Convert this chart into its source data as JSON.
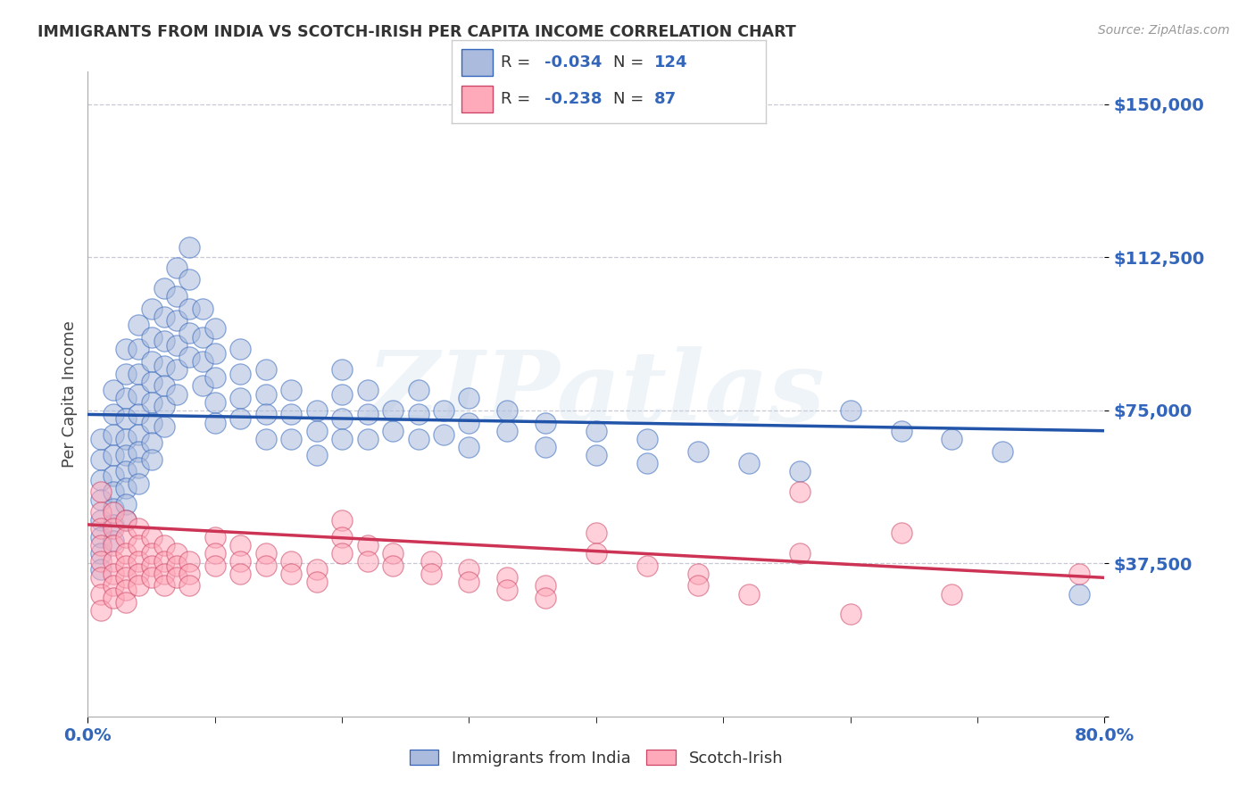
{
  "title": "IMMIGRANTS FROM INDIA VS SCOTCH-IRISH PER CAPITA INCOME CORRELATION CHART",
  "source": "Source: ZipAtlas.com",
  "ylabel": "Per Capita Income",
  "yticks": [
    0,
    37500,
    75000,
    112500,
    150000
  ],
  "ytick_labels": [
    "",
    "$37,500",
    "$75,000",
    "$112,500",
    "$150,000"
  ],
  "xmin": 0.0,
  "xmax": 0.8,
  "ymin": 0,
  "ymax": 158000,
  "watermark": "ZIPatlas",
  "blue_R": -0.034,
  "blue_N": 124,
  "pink_R": -0.238,
  "pink_N": 87,
  "blue_fill": "#AABBDD",
  "blue_edge": "#3366BB",
  "pink_fill": "#FFAABB",
  "pink_edge": "#CC4466",
  "blue_line": "#2255AA",
  "pink_line": "#CC3355",
  "legend_blue_label": "Immigrants from India",
  "legend_pink_label": "Scotch-Irish",
  "blue_scatter_x": [
    0.01,
    0.01,
    0.01,
    0.01,
    0.01,
    0.01,
    0.01,
    0.01,
    0.02,
    0.02,
    0.02,
    0.02,
    0.02,
    0.02,
    0.02,
    0.02,
    0.02,
    0.03,
    0.03,
    0.03,
    0.03,
    0.03,
    0.03,
    0.03,
    0.03,
    0.03,
    0.03,
    0.04,
    0.04,
    0.04,
    0.04,
    0.04,
    0.04,
    0.04,
    0.04,
    0.04,
    0.05,
    0.05,
    0.05,
    0.05,
    0.05,
    0.05,
    0.05,
    0.05,
    0.06,
    0.06,
    0.06,
    0.06,
    0.06,
    0.06,
    0.06,
    0.07,
    0.07,
    0.07,
    0.07,
    0.07,
    0.07,
    0.08,
    0.08,
    0.08,
    0.08,
    0.08,
    0.09,
    0.09,
    0.09,
    0.09,
    0.1,
    0.1,
    0.1,
    0.1,
    0.1,
    0.12,
    0.12,
    0.12,
    0.12,
    0.14,
    0.14,
    0.14,
    0.14,
    0.16,
    0.16,
    0.16,
    0.18,
    0.18,
    0.18,
    0.2,
    0.2,
    0.2,
    0.2,
    0.22,
    0.22,
    0.22,
    0.24,
    0.24,
    0.26,
    0.26,
    0.26,
    0.28,
    0.28,
    0.3,
    0.3,
    0.3,
    0.33,
    0.33,
    0.36,
    0.36,
    0.4,
    0.4,
    0.44,
    0.44,
    0.48,
    0.52,
    0.56,
    0.6,
    0.64,
    0.68,
    0.72,
    0.78
  ],
  "blue_scatter_y": [
    68000,
    63000,
    58000,
    53000,
    48000,
    44000,
    40000,
    36000,
    80000,
    74000,
    69000,
    64000,
    59000,
    55000,
    51000,
    47000,
    43000,
    90000,
    84000,
    78000,
    73000,
    68000,
    64000,
    60000,
    56000,
    52000,
    48000,
    96000,
    90000,
    84000,
    79000,
    74000,
    69000,
    65000,
    61000,
    57000,
    100000,
    93000,
    87000,
    82000,
    77000,
    72000,
    67000,
    63000,
    105000,
    98000,
    92000,
    86000,
    81000,
    76000,
    71000,
    110000,
    103000,
    97000,
    91000,
    85000,
    79000,
    115000,
    107000,
    100000,
    94000,
    88000,
    100000,
    93000,
    87000,
    81000,
    95000,
    89000,
    83000,
    77000,
    72000,
    90000,
    84000,
    78000,
    73000,
    85000,
    79000,
    74000,
    68000,
    80000,
    74000,
    68000,
    75000,
    70000,
    64000,
    85000,
    79000,
    73000,
    68000,
    80000,
    74000,
    68000,
    75000,
    70000,
    80000,
    74000,
    68000,
    75000,
    69000,
    78000,
    72000,
    66000,
    75000,
    70000,
    72000,
    66000,
    70000,
    64000,
    68000,
    62000,
    65000,
    62000,
    60000,
    75000,
    70000,
    68000,
    65000,
    30000
  ],
  "pink_scatter_x": [
    0.01,
    0.01,
    0.01,
    0.01,
    0.01,
    0.01,
    0.01,
    0.01,
    0.02,
    0.02,
    0.02,
    0.02,
    0.02,
    0.02,
    0.02,
    0.03,
    0.03,
    0.03,
    0.03,
    0.03,
    0.03,
    0.03,
    0.04,
    0.04,
    0.04,
    0.04,
    0.04,
    0.05,
    0.05,
    0.05,
    0.05,
    0.06,
    0.06,
    0.06,
    0.06,
    0.07,
    0.07,
    0.07,
    0.08,
    0.08,
    0.08,
    0.1,
    0.1,
    0.1,
    0.12,
    0.12,
    0.12,
    0.14,
    0.14,
    0.16,
    0.16,
    0.18,
    0.18,
    0.2,
    0.2,
    0.2,
    0.22,
    0.22,
    0.24,
    0.24,
    0.27,
    0.27,
    0.3,
    0.3,
    0.33,
    0.33,
    0.36,
    0.36,
    0.4,
    0.4,
    0.44,
    0.48,
    0.48,
    0.52,
    0.56,
    0.56,
    0.6,
    0.64,
    0.68,
    0.78
  ],
  "pink_scatter_y": [
    55000,
    50000,
    46000,
    42000,
    38000,
    34000,
    30000,
    26000,
    50000,
    46000,
    42000,
    38000,
    35000,
    32000,
    29000,
    48000,
    44000,
    40000,
    37000,
    34000,
    31000,
    28000,
    46000,
    42000,
    38000,
    35000,
    32000,
    44000,
    40000,
    37000,
    34000,
    42000,
    38000,
    35000,
    32000,
    40000,
    37000,
    34000,
    38000,
    35000,
    32000,
    44000,
    40000,
    37000,
    42000,
    38000,
    35000,
    40000,
    37000,
    38000,
    35000,
    36000,
    33000,
    48000,
    44000,
    40000,
    42000,
    38000,
    40000,
    37000,
    38000,
    35000,
    36000,
    33000,
    34000,
    31000,
    32000,
    29000,
    45000,
    40000,
    37000,
    35000,
    32000,
    30000,
    55000,
    40000,
    25000,
    45000,
    30000,
    35000
  ],
  "blue_line_x": [
    0.0,
    0.8
  ],
  "blue_line_y": [
    74000,
    70000
  ],
  "pink_line_x": [
    0.0,
    0.8
  ],
  "pink_line_y": [
    47000,
    34000
  ],
  "background_color": "#FFFFFF",
  "grid_color": "#BBBBCC",
  "title_color": "#333333",
  "tick_color": "#3366BB"
}
